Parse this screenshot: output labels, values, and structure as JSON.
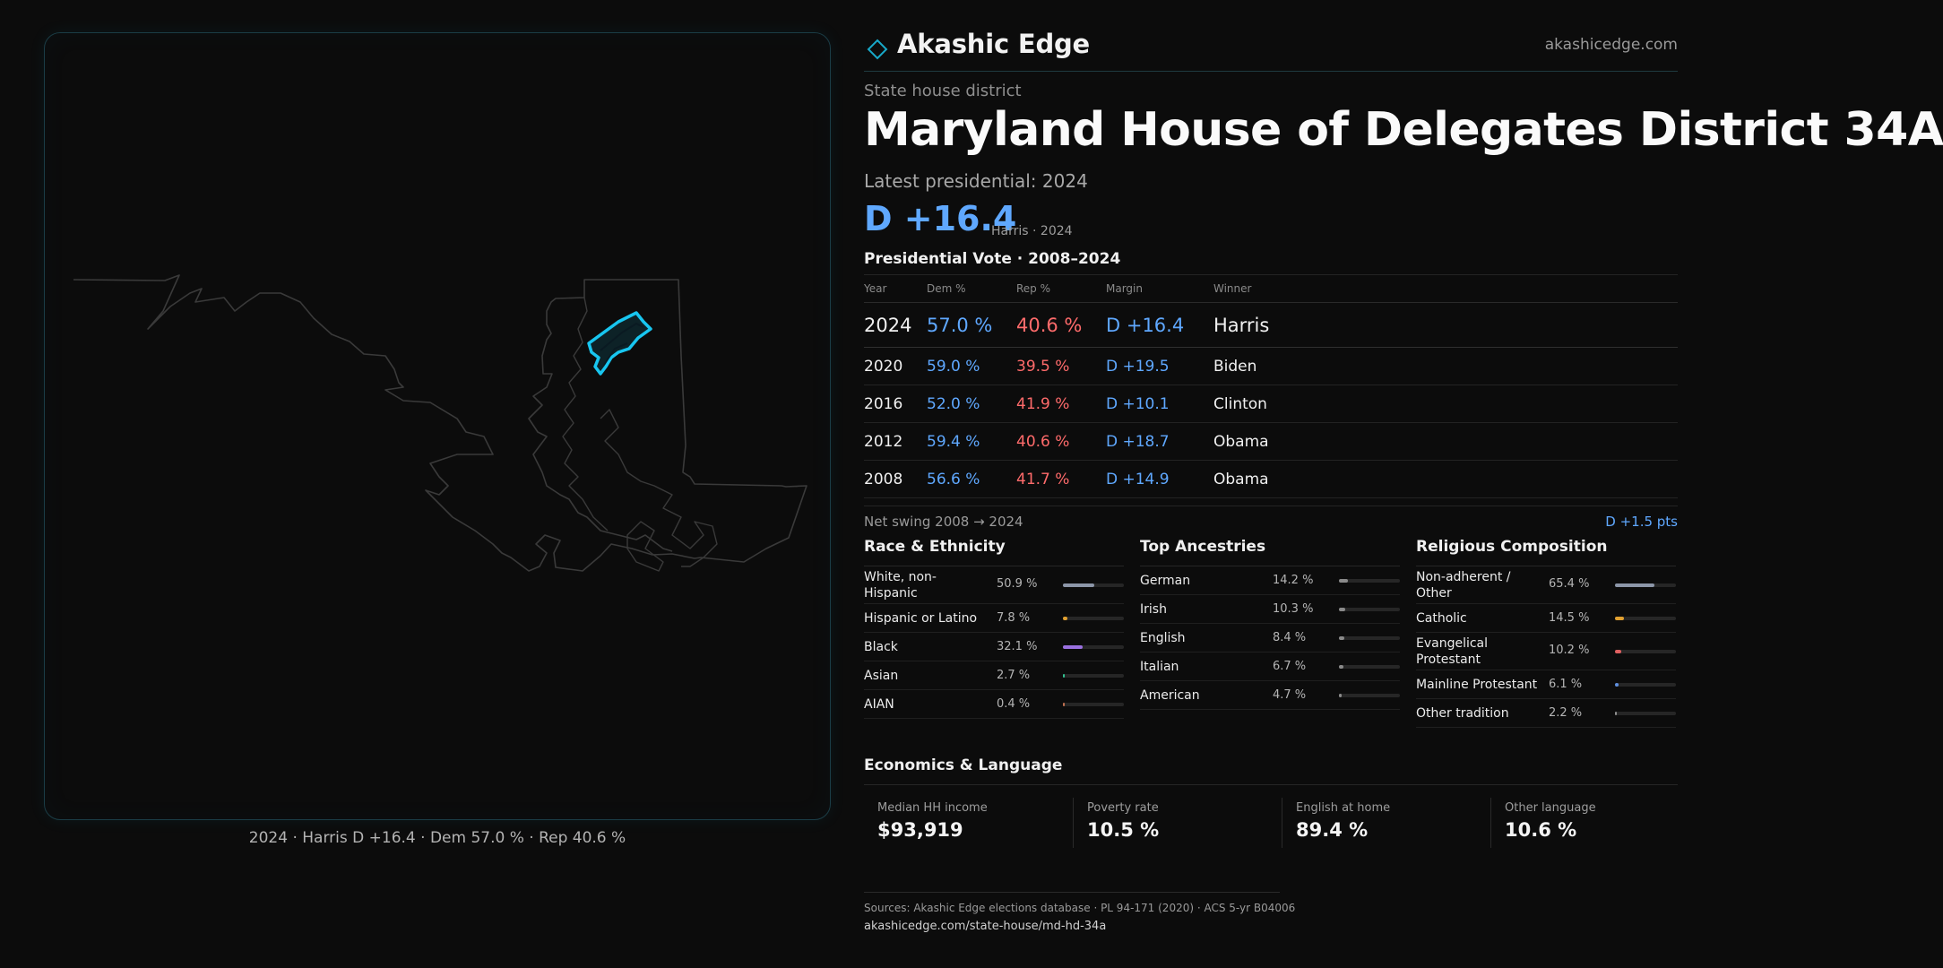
{
  "brand": {
    "name": "Akashic Edge",
    "url": "akashicedge.com"
  },
  "district": {
    "kicker": "State house district",
    "title": "Maryland House of Delegates District 34A",
    "latest_label": "Latest presidential: 2024",
    "margin": "D +16.4",
    "margin_sub": "Harris · 2024"
  },
  "map": {
    "caption": "2024 · Harris D +16.4 · Dem 57.0 % · Rep 40.6 %",
    "highlight_color": "#18c6f0",
    "outline_color": "#3a3a3a"
  },
  "presidential": {
    "title": "Presidential Vote · 2008–2024",
    "headers": {
      "year": "Year",
      "dem": "Dem %",
      "rep": "Rep %",
      "margin": "Margin",
      "winner": "Winner"
    },
    "rows": [
      {
        "year": "2024",
        "dem": "57.0 %",
        "rep": "40.6 %",
        "margin": "D +16.4",
        "winner": "Harris"
      },
      {
        "year": "2020",
        "dem": "59.0 %",
        "rep": "39.5 %",
        "margin": "D +19.5",
        "winner": "Biden"
      },
      {
        "year": "2016",
        "dem": "52.0 %",
        "rep": "41.9 %",
        "margin": "D +10.1",
        "winner": "Clinton"
      },
      {
        "year": "2012",
        "dem": "59.4 %",
        "rep": "40.6 %",
        "margin": "D +18.7",
        "winner": "Obama"
      },
      {
        "year": "2008",
        "dem": "56.6 %",
        "rep": "41.7 %",
        "margin": "D +14.9",
        "winner": "Obama"
      }
    ],
    "swing_label": "Net swing 2008 → 2024",
    "swing_value": "D +1.5 pts"
  },
  "race": {
    "title": "Race & Ethnicity",
    "items": [
      {
        "label": "White, non-Hispanic",
        "value": "50.9 %",
        "pct": 50.9,
        "color": "#8c96a8"
      },
      {
        "label": "Hispanic or Latino",
        "value": "7.8 %",
        "pct": 7.8,
        "color": "#e0a030"
      },
      {
        "label": "Black",
        "value": "32.1 %",
        "pct": 32.1,
        "color": "#9a70e0"
      },
      {
        "label": "Asian",
        "value": "2.7 %",
        "pct": 2.7,
        "color": "#30c090"
      },
      {
        "label": "AIAN",
        "value": "0.4 %",
        "pct": 0.4,
        "color": "#c07050"
      }
    ]
  },
  "ancestry": {
    "title": "Top Ancestries",
    "items": [
      {
        "label": "German",
        "value": "14.2 %",
        "pct": 14.2,
        "color": "#8a8a8a"
      },
      {
        "label": "Irish",
        "value": "10.3 %",
        "pct": 10.3,
        "color": "#8a8a8a"
      },
      {
        "label": "English",
        "value": "8.4 %",
        "pct": 8.4,
        "color": "#8a8a8a"
      },
      {
        "label": "Italian",
        "value": "6.7 %",
        "pct": 6.7,
        "color": "#8a8a8a"
      },
      {
        "label": "American",
        "value": "4.7 %",
        "pct": 4.7,
        "color": "#8a8a8a"
      }
    ]
  },
  "religion": {
    "title": "Religious Composition",
    "items": [
      {
        "label": "Non-adherent / Other",
        "value": "65.4 %",
        "pct": 65.4,
        "color": "#8c96a8"
      },
      {
        "label": "Catholic",
        "value": "14.5 %",
        "pct": 14.5,
        "color": "#e0a030"
      },
      {
        "label": "Evangelical Protestant",
        "value": "10.2 %",
        "pct": 10.2,
        "color": "#e06060"
      },
      {
        "label": "Mainline Protestant",
        "value": "6.1 %",
        "pct": 6.1,
        "color": "#5f8fe0"
      },
      {
        "label": "Other tradition",
        "value": "2.2 %",
        "pct": 2.2,
        "color": "#909090"
      }
    ]
  },
  "economics": {
    "title": "Economics & Language",
    "cards": [
      {
        "label": "Median HH income",
        "value": "$93,919"
      },
      {
        "label": "Poverty rate",
        "value": "10.5 %"
      },
      {
        "label": "English at home",
        "value": "89.4 %"
      },
      {
        "label": "Other language",
        "value": "10.6 %"
      }
    ]
  },
  "footer": {
    "sources": "Sources: Akashic Edge elections database · PL 94-171 (2020) · ACS 5-yr B04006",
    "url": "akashicedge.com/state-house/md-hd-34a"
  }
}
